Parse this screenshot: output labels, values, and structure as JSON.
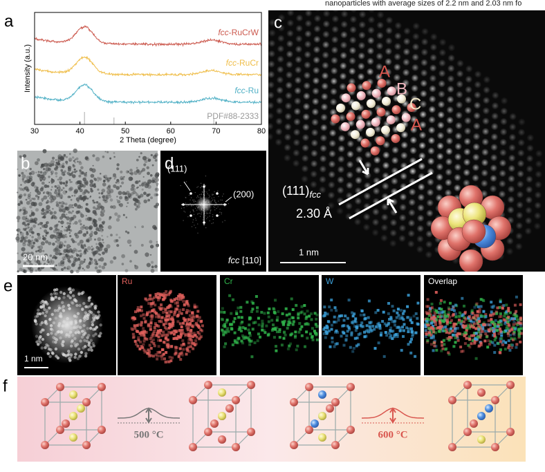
{
  "header": {
    "caption_fragment": "nanoparticles with average sizes of 2.2 nm and 2.03 nm fo"
  },
  "panel_a": {
    "label": "a",
    "y_axis_title": "Intensity (a.u.)",
    "x_axis_title": "2 Theta (degree)",
    "xlim": [
      30,
      80
    ],
    "xticks": [
      30,
      40,
      50,
      60,
      70,
      80
    ],
    "curves": [
      {
        "prefix": "fcc",
        "suffix": "-RuCrW",
        "color": "#cc5a4f"
      },
      {
        "prefix": "fcc",
        "suffix": "-RuCr",
        "color": "#efbd48"
      },
      {
        "prefix": "fcc",
        "suffix": "-Ru",
        "color": "#52b1c6"
      }
    ],
    "reference": "PDF#88-2333"
  },
  "panel_b": {
    "label": "b",
    "scale": "20 nm"
  },
  "panel_c": {
    "label": "c",
    "stacking": [
      "A",
      "B",
      "C",
      "A"
    ],
    "plane": "(111)",
    "plane_sub": "fcc",
    "spacing": "2.30 Å",
    "scale": "1 nm"
  },
  "panel_d": {
    "label": "d",
    "spot_1": "(111)",
    "spot_2": "(200)",
    "zone_prefix": "fcc",
    "zone_suffix": " [110]"
  },
  "panel_e": {
    "label": "e",
    "scale": "1 nm",
    "maps": [
      {
        "name": "Ru",
        "color": "#e0605c"
      },
      {
        "name": "Cr",
        "color": "#2fb24a"
      },
      {
        "name": "W",
        "color": "#3b9fd8"
      },
      {
        "name": "Overlap",
        "color": "#ffffff"
      }
    ]
  },
  "panel_f": {
    "label": "f",
    "temperatures": [
      "500 °C",
      "600 °C"
    ]
  }
}
